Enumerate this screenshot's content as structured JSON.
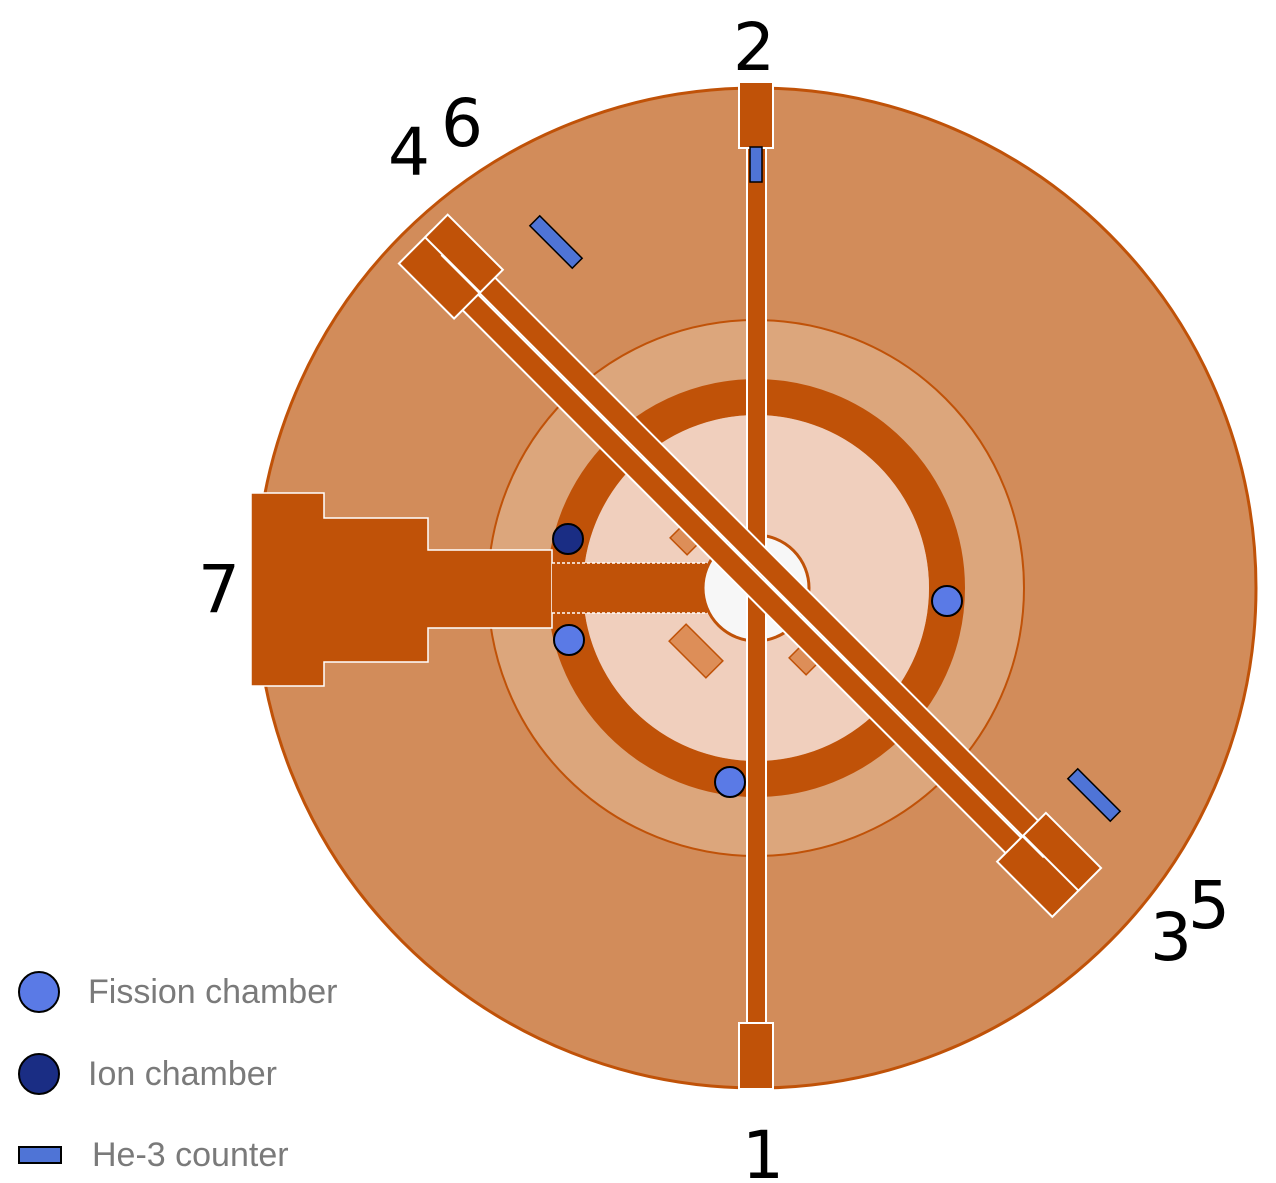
{
  "labels": {
    "port_1": "1",
    "port_2": "2",
    "port_3": "3",
    "port_4": "4",
    "port_5": "5",
    "port_6": "6",
    "port_7": "7"
  },
  "legend": {
    "fission": "Fission chamber",
    "ion": "Ion chamber",
    "he3": "He-3 counter"
  },
  "colors": {
    "outer_shield": "#d28c5a",
    "reflector": "#dca67c",
    "core_region": "#f0cfbd",
    "ring": "#c05208",
    "beam_tube": "#c05208",
    "fuel_element": "#dd8e58",
    "central_hole": "#f7f7f7",
    "fission_chamber": "#5a7ae6",
    "ion_chamber": "#1a2d84",
    "he3_counter": "#4f74d6"
  }
}
